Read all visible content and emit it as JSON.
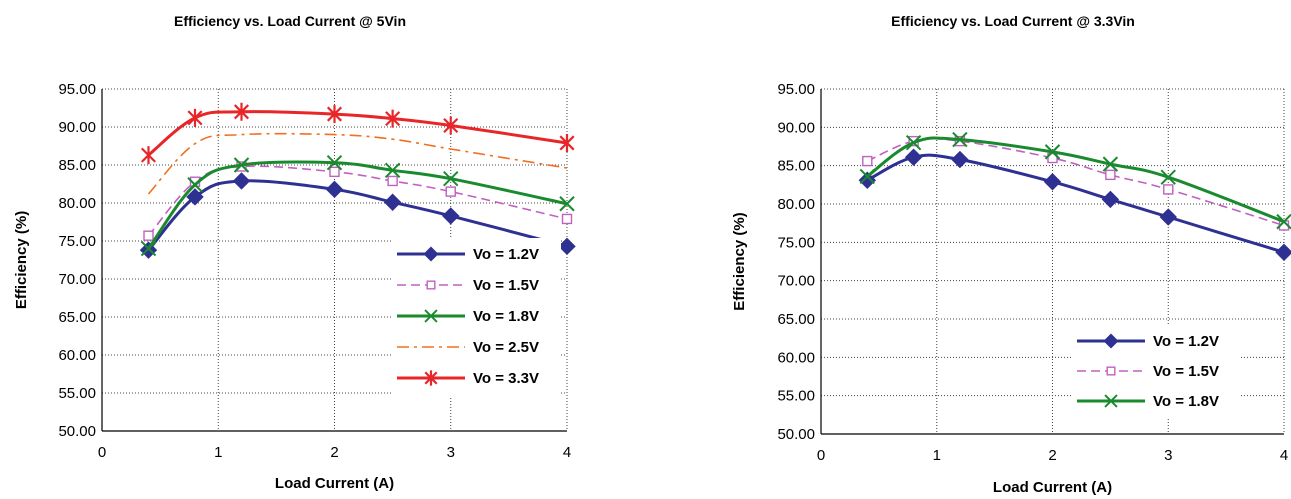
{
  "chart_data": [
    {
      "type": "line",
      "title": "Efficiency vs. Load Current  @ 5Vin",
      "xlabel": "Load Current (A)",
      "ylabel": "Efficiency (%)",
      "xlim": [
        0,
        4
      ],
      "ylim": [
        50,
        95
      ],
      "xticks": [
        "0",
        "1",
        "2",
        "3",
        "4"
      ],
      "yticks": [
        "50.00",
        "55.00",
        "60.00",
        "65.00",
        "70.00",
        "75.00",
        "80.00",
        "85.00",
        "90.00",
        "95.00"
      ],
      "grid": true,
      "legend_position": "bottom-right",
      "series": [
        {
          "name": "Vo = 1.2V",
          "color": "#2e3192",
          "dash": "solid",
          "marker": "diamond",
          "x": [
            0.4,
            0.8,
            1.2,
            2.0,
            2.5,
            3.0,
            4.0
          ],
          "y": [
            73.8,
            80.8,
            82.9,
            81.8,
            80.1,
            78.3,
            74.3
          ]
        },
        {
          "name": "Vo = 1.5V",
          "color": "#c060c0",
          "dash": "dashed",
          "marker": "square",
          "x": [
            0.4,
            0.8,
            1.2,
            2.0,
            2.5,
            3.0,
            4.0
          ],
          "y": [
            75.7,
            82.8,
            84.8,
            84.1,
            82.9,
            81.5,
            77.9
          ]
        },
        {
          "name": "Vo = 1.8V",
          "color": "#1a8a2e",
          "dash": "solid",
          "marker": "x",
          "x": [
            0.4,
            0.8,
            1.2,
            2.0,
            2.5,
            3.0,
            4.0
          ],
          "y": [
            74.0,
            82.4,
            85.0,
            85.3,
            84.3,
            83.2,
            79.9
          ]
        },
        {
          "name": "Vo = 2.5V",
          "color": "#f07020",
          "dash": "dashdot",
          "marker": "none",
          "x": [
            0.4,
            0.8,
            1.2,
            2.0,
            2.5,
            3.0,
            4.0
          ],
          "y": [
            81.2,
            87.8,
            89.0,
            89.0,
            88.4,
            87.1,
            84.6
          ]
        },
        {
          "name": "Vo = 3.3V",
          "color": "#e8262a",
          "dash": "solid",
          "marker": "star",
          "x": [
            0.4,
            0.8,
            1.2,
            2.0,
            2.5,
            3.0,
            4.0
          ],
          "y": [
            86.3,
            91.2,
            92.0,
            91.7,
            91.1,
            90.2,
            87.9
          ]
        }
      ]
    },
    {
      "type": "line",
      "title": "Efficiency vs. Load Current  @ 3.3Vin",
      "xlabel": "Load Current (A)",
      "ylabel": "Efficiency (%)",
      "xlim": [
        0,
        4
      ],
      "ylim": [
        50,
        95
      ],
      "xticks": [
        "0",
        "1",
        "2",
        "3",
        "4"
      ],
      "yticks": [
        "50.00",
        "55.00",
        "60.00",
        "65.00",
        "70.00",
        "75.00",
        "80.00",
        "85.00",
        "90.00",
        "95.00"
      ],
      "grid": true,
      "legend_position": "bottom-right",
      "series": [
        {
          "name": "Vo = 1.2V",
          "color": "#2e3192",
          "dash": "solid",
          "marker": "diamond",
          "x": [
            0.4,
            0.8,
            1.2,
            2.0,
            2.5,
            3.0,
            4.0
          ],
          "y": [
            83.1,
            86.1,
            85.8,
            82.9,
            80.6,
            78.3,
            73.7
          ]
        },
        {
          "name": "Vo = 1.5V",
          "color": "#c060c0",
          "dash": "dashed",
          "marker": "square",
          "x": [
            0.4,
            0.8,
            1.2,
            2.0,
            2.5,
            3.0,
            4.0
          ],
          "y": [
            85.6,
            88.2,
            88.2,
            86.0,
            83.8,
            81.9,
            77.2
          ]
        },
        {
          "name": "Vo = 1.8V",
          "color": "#1a8a2e",
          "dash": "solid",
          "marker": "x",
          "x": [
            0.4,
            0.8,
            1.2,
            2.0,
            2.5,
            3.0,
            4.0
          ],
          "y": [
            83.6,
            88.0,
            88.4,
            86.8,
            85.2,
            83.5,
            77.7
          ]
        }
      ]
    }
  ]
}
